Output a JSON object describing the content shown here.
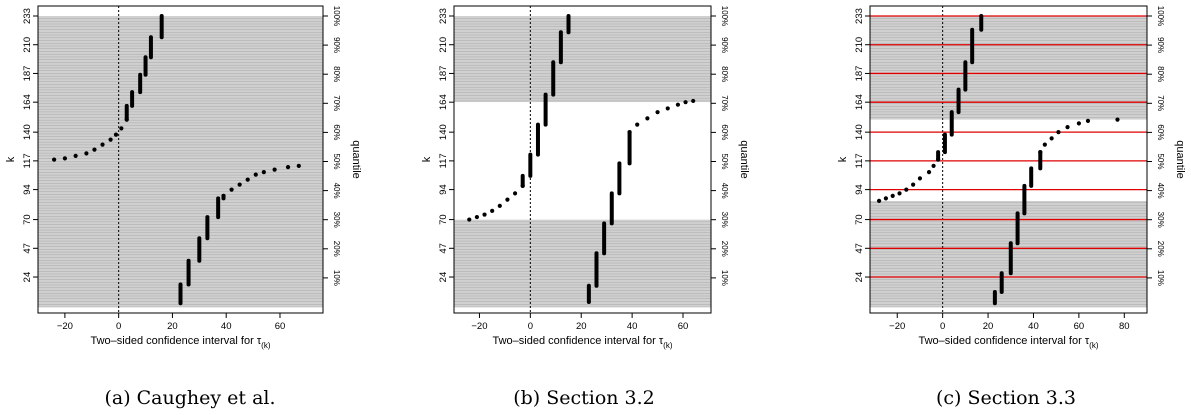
{
  "figure": {
    "xlabel_main": "Two–sided confidence interval for τ",
    "xlabel_sub": "(k)",
    "ylabel_left": "k",
    "ylabel_right": "quantile",
    "k_ticks": [
      "24",
      "47",
      "70",
      "94",
      "117",
      "140",
      "164",
      "187",
      "210",
      "233"
    ],
    "quantile_ticks": [
      "10%",
      "20%",
      "30%",
      "40%",
      "50%",
      "60%",
      "70%",
      "80%",
      "90%",
      "100%"
    ],
    "colors": {
      "band": "#d0d0d0",
      "stripe": "#a9a9a9",
      "interval": "#000000",
      "highlight": "#e00000",
      "zero_line": "#000000"
    }
  },
  "chart_data": [
    {
      "type": "scatter",
      "caption": "(a) Caughey et al.",
      "xlabel": "Two–sided confidence interval for τ(k)",
      "ylabel": "k",
      "y2label": "quantile",
      "xlim": [
        -30,
        76
      ],
      "ylim": [
        0,
        233
      ],
      "x_ticks": [
        -20,
        0,
        20,
        40,
        60
      ],
      "band": {
        "type": "lower_left_upper_right",
        "split_k": 117
      },
      "highlight_k": [],
      "lower_endpoints": [
        {
          "k": 118,
          "x": -24
        },
        {
          "k": 119,
          "x": -20
        },
        {
          "k": 121,
          "x": -16
        },
        {
          "k": 123,
          "x": -12
        },
        {
          "k": 126,
          "x": -9
        },
        {
          "k": 130,
          "x": -6
        },
        {
          "k": 134,
          "x": -3
        },
        {
          "k": 138,
          "x": -1
        },
        {
          "k": 143,
          "x": 1
        },
        {
          "k": 150,
          "x": 3
        }
      ],
      "upper_endpoints": [
        {
          "k": 113,
          "x": 67
        },
        {
          "k": 112,
          "x": 63
        },
        {
          "k": 110,
          "x": 58
        },
        {
          "k": 108,
          "x": 54
        },
        {
          "k": 106,
          "x": 51
        },
        {
          "k": 102,
          "x": 48
        },
        {
          "k": 98,
          "x": 45
        },
        {
          "k": 94,
          "x": 42
        },
        {
          "k": 89,
          "x": 39
        }
      ],
      "intervals": [
        {
          "k_from": 150,
          "k_to": 161,
          "x": 3
        },
        {
          "k_from": 161,
          "k_to": 172,
          "x": 5
        },
        {
          "k_from": 172,
          "k_to": 186,
          "x": 8
        },
        {
          "k_from": 186,
          "k_to": 200,
          "x": 10
        },
        {
          "k_from": 200,
          "k_to": 216,
          "x": 12
        },
        {
          "k_from": 216,
          "k_to": 233,
          "x": 16
        },
        {
          "k_from": 3,
          "k_to": 18,
          "x": 23
        },
        {
          "k_from": 18,
          "k_to": 37,
          "x": 26
        },
        {
          "k_from": 37,
          "k_to": 55,
          "x": 30
        },
        {
          "k_from": 55,
          "k_to": 72,
          "x": 33
        },
        {
          "k_from": 72,
          "k_to": 87,
          "x": 37
        },
        {
          "k_from": 87,
          "k_to": 89,
          "x": 39
        }
      ]
    },
    {
      "type": "scatter",
      "caption": "(b) Section 3.2",
      "xlabel": "Two–sided confidence interval for τ(k)",
      "ylabel": "k",
      "y2label": "quantile",
      "xlim": [
        -30,
        71
      ],
      "ylim": [
        0,
        233
      ],
      "x_ticks": [
        -20,
        0,
        20,
        40,
        60
      ],
      "band": {
        "type": "lower_left_upper_right",
        "split_lower_k": 70,
        "split_upper_k": 164
      },
      "highlight_k": [],
      "lower_endpoints": [
        {
          "k": 70,
          "x": -24
        },
        {
          "k": 72,
          "x": -21
        },
        {
          "k": 74,
          "x": -18
        },
        {
          "k": 77,
          "x": -15
        },
        {
          "k": 81,
          "x": -12
        },
        {
          "k": 86,
          "x": -9
        },
        {
          "k": 91,
          "x": -6
        },
        {
          "k": 97,
          "x": -3
        }
      ],
      "upper_endpoints": [
        {
          "k": 165,
          "x": 64
        },
        {
          "k": 164,
          "x": 61
        },
        {
          "k": 162,
          "x": 58
        },
        {
          "k": 159,
          "x": 54
        },
        {
          "k": 156,
          "x": 50
        },
        {
          "k": 151,
          "x": 46
        },
        {
          "k": 146,
          "x": 42
        },
        {
          "k": 140,
          "x": 39
        }
      ],
      "intervals": [
        {
          "k_from": 97,
          "k_to": 105,
          "x": -3
        },
        {
          "k_from": 105,
          "k_to": 122,
          "x": 0
        },
        {
          "k_from": 122,
          "k_to": 146,
          "x": 3
        },
        {
          "k_from": 146,
          "k_to": 170,
          "x": 6
        },
        {
          "k_from": 170,
          "k_to": 196,
          "x": 9
        },
        {
          "k_from": 196,
          "k_to": 220,
          "x": 12
        },
        {
          "k_from": 220,
          "k_to": 233,
          "x": 15
        },
        {
          "k_from": 4,
          "k_to": 17,
          "x": 23
        },
        {
          "k_from": 17,
          "k_to": 43,
          "x": 26
        },
        {
          "k_from": 43,
          "k_to": 67,
          "x": 29
        },
        {
          "k_from": 67,
          "k_to": 91,
          "x": 32
        },
        {
          "k_from": 91,
          "k_to": 115,
          "x": 35
        },
        {
          "k_from": 115,
          "k_to": 140,
          "x": 39
        }
      ]
    },
    {
      "type": "scatter",
      "caption": "(c) Section 3.3",
      "xlabel": "Two–sided confidence interval for τ(k)",
      "ylabel": "k",
      "y2label": "quantile",
      "xlim": [
        -32,
        90
      ],
      "ylim": [
        0,
        233
      ],
      "x_ticks": [
        -20,
        0,
        20,
        40,
        60,
        80
      ],
      "band": {
        "type": "lower_left_upper_right",
        "split_lower_k": 85,
        "split_upper_k": 150
      },
      "highlight_k": [
        24,
        47,
        70,
        94,
        117,
        140,
        164,
        187,
        210,
        233
      ],
      "lower_endpoints": [
        {
          "k": 85,
          "x": -28
        },
        {
          "k": 87,
          "x": -25
        },
        {
          "k": 89,
          "x": -22
        },
        {
          "k": 91,
          "x": -19
        },
        {
          "k": 94,
          "x": -16
        },
        {
          "k": 98,
          "x": -13
        },
        {
          "k": 103,
          "x": -10
        },
        {
          "k": 108,
          "x": -6
        },
        {
          "k": 113,
          "x": -4
        },
        {
          "k": 118,
          "x": -2
        }
      ],
      "upper_endpoints": [
        {
          "k": 150,
          "x": 77
        },
        {
          "k": 149,
          "x": 64
        },
        {
          "k": 147,
          "x": 60
        },
        {
          "k": 144,
          "x": 55
        },
        {
          "k": 140,
          "x": 51
        },
        {
          "k": 135,
          "x": 48
        },
        {
          "k": 130,
          "x": 45
        },
        {
          "k": 124,
          "x": 43
        }
      ],
      "intervals": [
        {
          "k_from": 118,
          "k_to": 124,
          "x": -2
        },
        {
          "k_from": 124,
          "k_to": 138,
          "x": 1
        },
        {
          "k_from": 138,
          "k_to": 156,
          "x": 4
        },
        {
          "k_from": 156,
          "k_to": 174,
          "x": 7
        },
        {
          "k_from": 174,
          "k_to": 196,
          "x": 10
        },
        {
          "k_from": 196,
          "k_to": 222,
          "x": 13
        },
        {
          "k_from": 222,
          "k_to": 233,
          "x": 17
        },
        {
          "k_from": 3,
          "k_to": 12,
          "x": 23
        },
        {
          "k_from": 12,
          "k_to": 27,
          "x": 26
        },
        {
          "k_from": 27,
          "k_to": 51,
          "x": 30
        },
        {
          "k_from": 51,
          "k_to": 75,
          "x": 33
        },
        {
          "k_from": 75,
          "k_to": 97,
          "x": 36
        },
        {
          "k_from": 97,
          "k_to": 111,
          "x": 39
        },
        {
          "k_from": 111,
          "k_to": 124,
          "x": 43
        }
      ]
    }
  ]
}
